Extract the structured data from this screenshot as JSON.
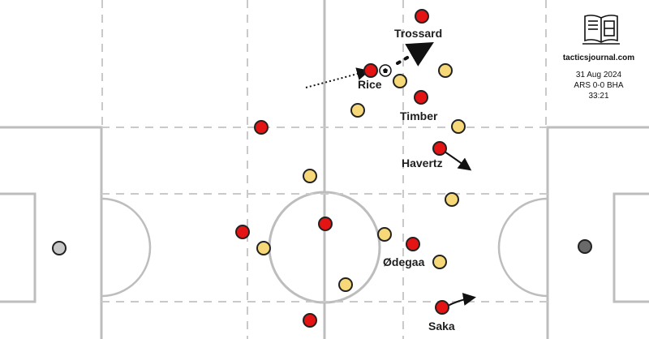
{
  "brand": {
    "logo_icon": "book-pitch-icon",
    "site": "tacticsjournal.com"
  },
  "match": {
    "date": "31 Aug 2024",
    "score": "ARS 0-0 BHA",
    "clock": "33:21"
  },
  "colors": {
    "arsenal": "#e41414",
    "brighton": "#f6d878",
    "goalkeeper": "#c8c8c8",
    "goalkeeper_right": "#6a6a6a",
    "lines": "#bdbdbd"
  },
  "labels": {
    "trossard": "Trossard",
    "rice": "Rice",
    "timber": "Timber",
    "havertz": "Havertz",
    "odegaard": "Ødegaa",
    "saka": "Saka"
  }
}
